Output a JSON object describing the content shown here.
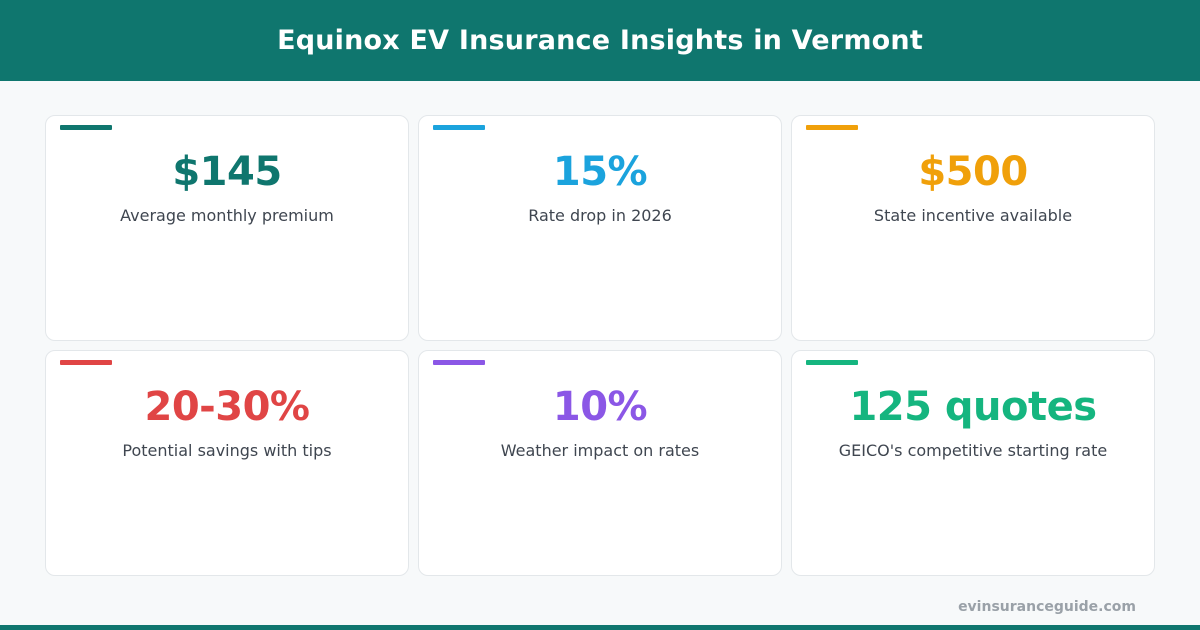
{
  "header": {
    "title": "Equinox EV Insurance Insights in Vermont",
    "background_color": "#0f766e"
  },
  "cards": [
    {
      "value": "$145",
      "label": "Average monthly premium",
      "color": "#0f766e"
    },
    {
      "value": "15%",
      "label": "Rate drop in 2026",
      "color": "#1ba3dd"
    },
    {
      "value": "$500",
      "label": "State incentive available",
      "color": "#f0a00a"
    },
    {
      "value": "20-30%",
      "label": "Potential savings with tips",
      "color": "#e04545"
    },
    {
      "value": "10%",
      "label": "Weather impact on rates",
      "color": "#8b57e6"
    },
    {
      "value": "125 quotes",
      "label": "GEICO's competitive starting rate",
      "color": "#15b57f"
    }
  ],
  "footer": {
    "domain": "evinsuranceguide.com"
  }
}
